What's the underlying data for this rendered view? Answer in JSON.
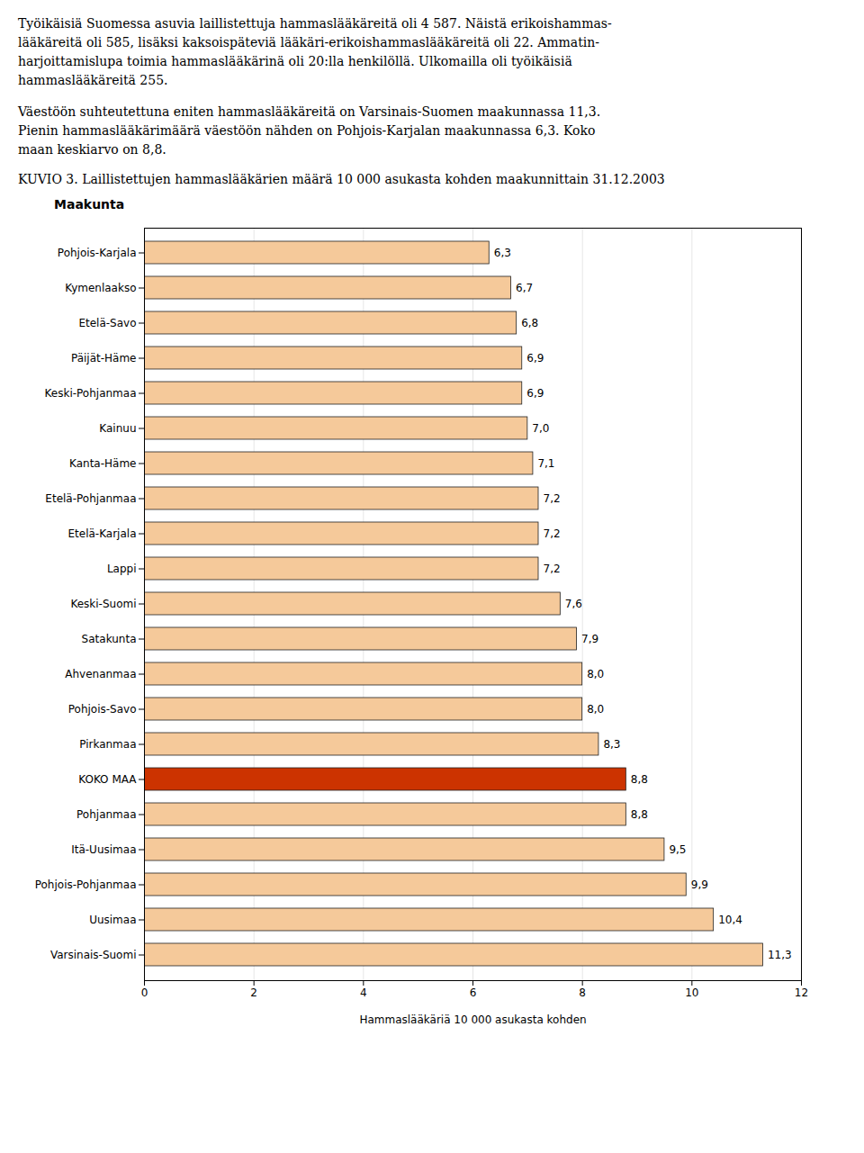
{
  "chart_data": {
    "type": "bar",
    "orientation": "horizontal",
    "annotations": [
      "Työikäisiä Suomessa asuvia laillistettuja hammaslääkäreitä oli 4 587. Näistä erikoishammas-\nlääkäreitä oli 585, lisäksi kaksoispäteviä lääkäri-erikoishammaslääkäreitä oli 22. Ammatin-\nharjoittamislupa toimia hammaslääkärinä oli 20:lla henkilöllä. Ulkomailla oli työikäisiä\nhammaslääkäreitä 255.",
      "Väestöön suhteutettuna eniten hammaslääkäreitä on Varsinais-Suomen maakunnassa 11,3.\nPienin hammaslääkärimäärä väestöön nähden on Pohjois-Karjalan maakunnassa 6,3. Koko\nmaan keskiarvo on 8,8."
    ],
    "title": "KUVIO 3. Laillistettujen hammaslääkärien määrä 10 000 asukasta kohden maakunnittain 31.12.2003",
    "ylabel": "Maakunta",
    "xlabel": "Hammaslääkäriä 10 000 asukasta kohden",
    "categories": [
      "Varsinais-Suomi",
      "Uusimaa",
      "Pohjois-Pohjanmaa",
      "Itä-Uusimaa",
      "Pohjanmaa",
      "KOKO MAA",
      "Pirkanmaa",
      "Pohjois-Savo",
      "Ahvenanmaa",
      "Satakunta",
      "Keski-Suomi",
      "Lappi",
      "Etelä-Karjala",
      "Etelä-Pohjanmaa",
      "Kanta-Häme",
      "Kainuu",
      "Keski-Pohjanmaa",
      "Päijät-Häme",
      "Etelä-Savo",
      "Kymenlaakso",
      "Pohjois-Karjala"
    ],
    "values": [
      11.3,
      10.4,
      9.9,
      9.5,
      8.8,
      8.8,
      8.3,
      8.0,
      8.0,
      7.9,
      7.6,
      7.2,
      7.2,
      7.2,
      7.1,
      7.0,
      6.9,
      6.9,
      6.8,
      6.7,
      6.3
    ],
    "value_labels": [
      "11,3",
      "10,4",
      "9,9",
      "9,5",
      "8,8",
      "8,8",
      "8,3",
      "8,0",
      "8,0",
      "7,9",
      "7,6",
      "7,2",
      "7,2",
      "7,2",
      "7,1",
      "7,0",
      "6,9",
      "6,9",
      "6,8",
      "6,7",
      "6,3"
    ],
    "data_labels": true,
    "colors": [
      "#f5c99a",
      "#f5c99a",
      "#f5c99a",
      "#f5c99a",
      "#f5c99a",
      "#cc3300",
      "#f5c99a",
      "#f5c99a",
      "#f5c99a",
      "#f5c99a",
      "#f5c99a",
      "#f5c99a",
      "#f5c99a",
      "#f5c99a",
      "#f5c99a",
      "#f5c99a",
      "#f5c99a",
      "#f5c99a",
      "#f5c99a",
      "#f5c99a",
      "#f5c99a"
    ],
    "xlim": [
      0,
      12
    ],
    "xticks": [
      0,
      2,
      4,
      6,
      8,
      10,
      12
    ],
    "grid": true
  }
}
